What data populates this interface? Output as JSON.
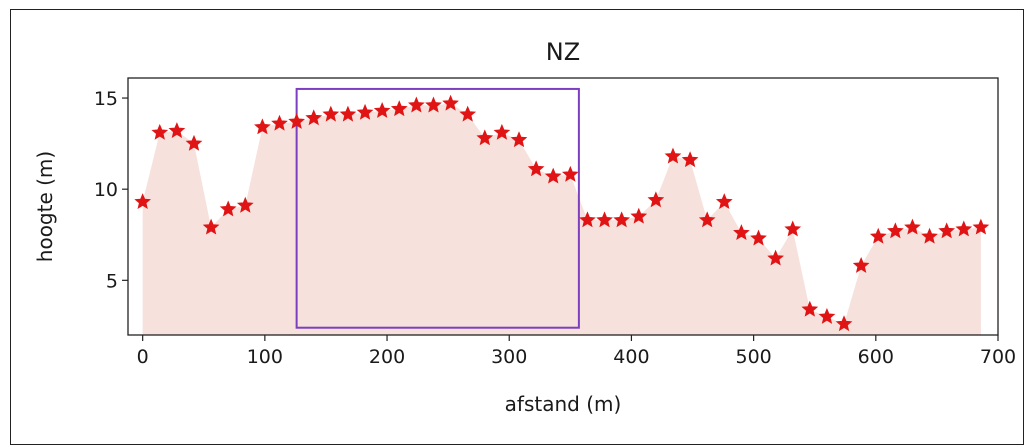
{
  "chart_data": {
    "type": "area",
    "title": "NZ",
    "xlabel": "afstand (m)",
    "ylabel": "hoogte (m)",
    "xlim": [
      -12,
      700
    ],
    "ylim": [
      2,
      16.1
    ],
    "xticks": [
      0,
      100,
      200,
      300,
      400,
      500,
      600,
      700
    ],
    "yticks": [
      5,
      10,
      15
    ],
    "grid": false,
    "legend": "none",
    "colors": {
      "fill": "#f6e1dc",
      "marker": "#e01414",
      "highlight": "#7b3fbf",
      "axis": "#222222"
    },
    "marker": "star",
    "x": [
      0,
      14,
      28,
      42,
      56,
      70,
      84,
      98,
      112,
      126,
      140,
      154,
      168,
      182,
      196,
      210,
      224,
      238,
      252,
      266,
      280,
      294,
      308,
      322,
      336,
      350,
      364,
      378,
      392,
      406,
      420,
      434,
      448,
      462,
      476,
      490,
      504,
      518,
      532,
      546,
      560,
      574,
      588,
      602,
      616,
      630,
      644,
      658,
      672,
      686
    ],
    "y": [
      9.3,
      13.1,
      13.2,
      12.5,
      7.9,
      8.9,
      9.1,
      13.4,
      13.6,
      13.7,
      13.9,
      14.1,
      14.1,
      14.2,
      14.3,
      14.4,
      14.6,
      14.6,
      14.7,
      14.1,
      12.8,
      13.1,
      12.7,
      11.1,
      10.7,
      10.8,
      8.3,
      8.3,
      8.3,
      8.5,
      9.4,
      11.8,
      11.6,
      8.3,
      9.3,
      7.6,
      7.3,
      6.2,
      7.8,
      3.4,
      3.0,
      2.6,
      5.8,
      7.4,
      7.7,
      7.9,
      7.4,
      7.7,
      7.8,
      7.9
    ],
    "highlight_box": {
      "x": [
        126,
        357
      ],
      "y": [
        2.4,
        15.5
      ]
    }
  }
}
